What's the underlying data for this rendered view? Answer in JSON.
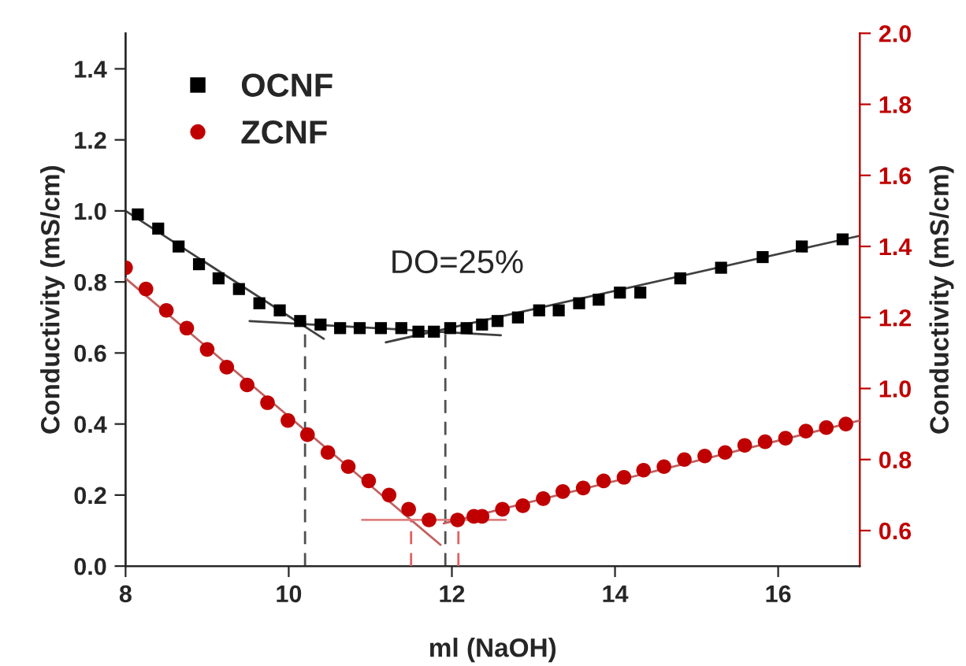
{
  "chart_data": {
    "type": "scatter",
    "xlabel": "ml (NaOH)",
    "ylabel": "Conductivity (mS/cm)",
    "y2label": "Conductivity (mS/cm)",
    "xlim": [
      8,
      17
    ],
    "xticks": [
      8,
      10,
      12,
      14,
      16
    ],
    "ylim": [
      0,
      1.5
    ],
    "yticks": [
      {
        "value": 0,
        "label": "0.0"
      },
      {
        "value": 0.2,
        "label": "0.2"
      },
      {
        "value": 0.4,
        "label": "0.4"
      },
      {
        "value": 0.6,
        "label": "0.6"
      },
      {
        "value": 0.8,
        "label": "0.8"
      },
      {
        "value": 1.0,
        "label": "1.0"
      },
      {
        "value": 1.2,
        "label": "1.2"
      },
      {
        "value": 1.4,
        "label": "1.4"
      }
    ],
    "y2lim": [
      0.5,
      2.0
    ],
    "y2ticks": [
      {
        "value": 0.6,
        "label": "0.6"
      },
      {
        "value": 0.8,
        "label": "0.8"
      },
      {
        "value": 1.0,
        "label": "1.0"
      },
      {
        "value": 1.2,
        "label": "1.2"
      },
      {
        "value": 1.4,
        "label": "1.4"
      },
      {
        "value": 1.6,
        "label": "1.6"
      },
      {
        "value": 1.8,
        "label": "1.8"
      },
      {
        "value": 2.0,
        "label": "2.0"
      }
    ],
    "grid": false,
    "legend": "top left",
    "annotations": [
      "DO=25%"
    ],
    "series": [
      {
        "name": "OCNF",
        "marker": "square",
        "color": "#000000",
        "x": [
          8.15,
          8.4,
          8.65,
          8.9,
          9.14,
          9.39,
          9.64,
          9.89,
          10.14,
          10.39,
          10.63,
          10.87,
          11.13,
          11.38,
          11.59,
          11.78,
          11.98,
          12.18,
          12.37,
          12.56,
          12.81,
          13.07,
          13.31,
          13.56,
          13.8,
          14.06,
          14.31,
          14.8,
          15.3,
          15.81,
          16.29,
          16.79
        ],
        "values": [
          0.99,
          0.95,
          0.9,
          0.85,
          0.81,
          0.78,
          0.74,
          0.72,
          0.69,
          0.68,
          0.67,
          0.67,
          0.67,
          0.67,
          0.66,
          0.66,
          0.67,
          0.67,
          0.68,
          0.69,
          0.7,
          0.72,
          0.72,
          0.74,
          0.75,
          0.77,
          0.77,
          0.81,
          0.84,
          0.87,
          0.9,
          0.92
        ]
      },
      {
        "name": "ZCNF",
        "marker": "circle",
        "axis": "y2",
        "color": "#c00000",
        "x": [
          8.0,
          8.25,
          8.5,
          8.75,
          9.0,
          9.24,
          9.49,
          9.74,
          9.99,
          10.23,
          10.48,
          10.73,
          10.98,
          11.23,
          11.47,
          11.72,
          12.07,
          12.27,
          12.37,
          12.62,
          12.87,
          13.12,
          13.36,
          13.61,
          13.86,
          14.11,
          14.35,
          14.6,
          14.85,
          15.1,
          15.35,
          15.59,
          15.84,
          16.09,
          16.34,
          16.59,
          16.83
        ],
        "values": [
          1.34,
          1.28,
          1.22,
          1.17,
          1.11,
          1.06,
          1.01,
          0.96,
          0.91,
          0.87,
          0.82,
          0.78,
          0.74,
          0.7,
          0.66,
          0.63,
          0.63,
          0.64,
          0.64,
          0.66,
          0.67,
          0.69,
          0.71,
          0.72,
          0.74,
          0.75,
          0.77,
          0.78,
          0.8,
          0.81,
          0.82,
          0.84,
          0.85,
          0.86,
          0.88,
          0.89,
          0.9
        ]
      },
      {
        "type": "line",
        "color": "#404040",
        "line_style": "solid",
        "x": [
          8.0,
          10.43
        ],
        "values": [
          1.0,
          0.64
        ]
      },
      {
        "type": "line",
        "color": "#404040",
        "line_style": "solid",
        "x": [
          9.52,
          12.6
        ],
        "values": [
          0.69,
          0.65
        ]
      },
      {
        "type": "line",
        "color": "#404040",
        "line_style": "solid",
        "x": [
          11.19,
          17.0
        ],
        "values": [
          0.63,
          0.93
        ]
      },
      {
        "type": "line",
        "color": "#505050",
        "line_style": "dashed",
        "x": [
          10.2,
          10.2
        ],
        "values": [
          0,
          0.69
        ]
      },
      {
        "type": "line",
        "color": "#505050",
        "line_style": "dashed",
        "x": [
          11.92,
          11.92
        ],
        "values": [
          0,
          0.66
        ]
      },
      {
        "type": "line",
        "axis": "y2",
        "color": "#c06060",
        "line_style": "solid",
        "x": [
          8.0,
          11.86
        ],
        "values": [
          1.31,
          0.56
        ]
      },
      {
        "type": "line",
        "axis": "y2",
        "color": "#e08080",
        "line_style": "solid",
        "x": [
          10.9,
          12.66
        ],
        "values": [
          0.63,
          0.63
        ]
      },
      {
        "type": "line",
        "axis": "y2",
        "color": "#c06060",
        "line_style": "solid",
        "x": [
          11.9,
          17.0
        ],
        "values": [
          0.62,
          0.91
        ]
      },
      {
        "type": "line",
        "axis": "y2",
        "color": "#e06060",
        "line_style": "dashed",
        "x": [
          11.5,
          11.5
        ],
        "values": [
          0.5,
          0.63
        ]
      },
      {
        "type": "line",
        "axis": "y2",
        "color": "#e06060",
        "line_style": "dashed",
        "x": [
          12.08,
          12.08
        ],
        "values": [
          0.5,
          0.63
        ]
      }
    ]
  }
}
